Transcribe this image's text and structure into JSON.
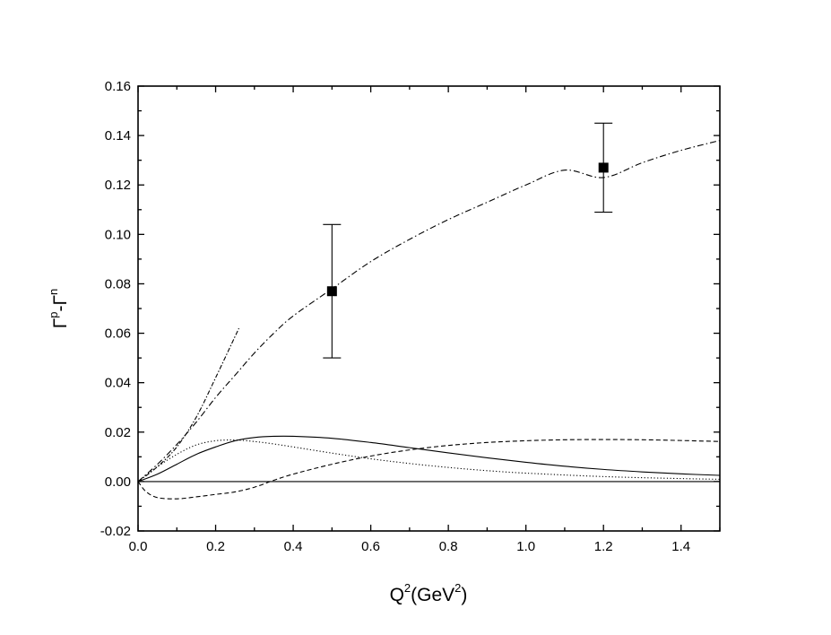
{
  "chart_data": {
    "type": "line",
    "title": "",
    "xlabel": {
      "base1": "Q",
      "sup1": "2",
      "base2": "(GeV",
      "sup2": "2",
      "base3": ")"
    },
    "ylabel": {
      "g1": "Γ",
      "sup1": "p",
      "mid": "-Γ",
      "sup2": "n"
    },
    "xlim": [
      0.0,
      1.5
    ],
    "ylim": [
      -0.02,
      0.16
    ],
    "x_ticks": [
      "0.0",
      "0.2",
      "0.4",
      "0.6",
      "0.8",
      "1.0",
      "1.2",
      "1.4"
    ],
    "y_ticks": [
      "-0.02",
      "0.00",
      "0.02",
      "0.04",
      "0.06",
      "0.08",
      "0.10",
      "0.12",
      "0.14",
      "0.16"
    ],
    "grid": false,
    "series": [
      {
        "style": "dash-dot",
        "x": [
          0.0,
          0.05,
          0.1,
          0.15,
          0.2,
          0.25,
          0.3,
          0.35,
          0.4,
          0.5,
          0.6,
          0.7,
          0.8,
          0.9,
          1.0,
          1.1,
          1.2,
          1.3,
          1.4,
          1.5
        ],
        "y": [
          0.0,
          0.007,
          0.015,
          0.024,
          0.034,
          0.043,
          0.052,
          0.06,
          0.067,
          0.078,
          0.089,
          0.098,
          0.106,
          0.113,
          0.12,
          0.126,
          0.123,
          0.129,
          0.134,
          0.138
        ]
      },
      {
        "style": "dash-dot-short",
        "x": [
          0.0,
          0.05,
          0.1,
          0.15,
          0.2,
          0.26
        ],
        "y": [
          0.0,
          0.006,
          0.014,
          0.026,
          0.042,
          0.062
        ]
      },
      {
        "style": "solid",
        "x": [
          0.0,
          0.05,
          0.1,
          0.15,
          0.2,
          0.25,
          0.3,
          0.35,
          0.4,
          0.5,
          0.6,
          0.7,
          0.8,
          0.9,
          1.0,
          1.1,
          1.2,
          1.3,
          1.4,
          1.5
        ],
        "y": [
          0.0,
          0.003,
          0.007,
          0.011,
          0.014,
          0.0165,
          0.0178,
          0.0183,
          0.0183,
          0.0175,
          0.0158,
          0.0137,
          0.0116,
          0.0096,
          0.0078,
          0.0062,
          0.0049,
          0.0039,
          0.0031,
          0.0025
        ]
      },
      {
        "style": "dotted",
        "x": [
          0.0,
          0.05,
          0.1,
          0.15,
          0.2,
          0.25,
          0.3,
          0.35,
          0.4,
          0.5,
          0.6,
          0.7,
          0.8,
          0.9,
          1.0,
          1.2,
          1.4,
          1.5
        ],
        "y": [
          0.0,
          0.006,
          0.011,
          0.0148,
          0.0165,
          0.0168,
          0.0162,
          0.0152,
          0.014,
          0.0115,
          0.0092,
          0.0073,
          0.0057,
          0.0044,
          0.0034,
          0.002,
          0.0012,
          0.0009
        ]
      },
      {
        "style": "dashed",
        "x": [
          0.0,
          0.02,
          0.05,
          0.1,
          0.15,
          0.2,
          0.25,
          0.3,
          0.35,
          0.4,
          0.5,
          0.6,
          0.7,
          0.8,
          0.9,
          1.0,
          1.1,
          1.2,
          1.3,
          1.4,
          1.5
        ],
        "y": [
          0.0,
          -0.004,
          -0.0065,
          -0.007,
          -0.0062,
          -0.0052,
          -0.0042,
          -0.0023,
          0.0005,
          0.003,
          0.007,
          0.0103,
          0.0128,
          0.0146,
          0.0158,
          0.0165,
          0.0169,
          0.017,
          0.0169,
          0.0166,
          0.0162
        ]
      },
      {
        "style": "baseline",
        "x": [
          0.0,
          1.5
        ],
        "y": [
          0.0,
          0.0
        ]
      }
    ],
    "points": [
      {
        "x": 0.5,
        "y": 0.077,
        "yerr_low": 0.05,
        "yerr_high": 0.104
      },
      {
        "x": 1.2,
        "y": 0.127,
        "yerr_low": 0.109,
        "yerr_high": 0.145
      }
    ]
  }
}
